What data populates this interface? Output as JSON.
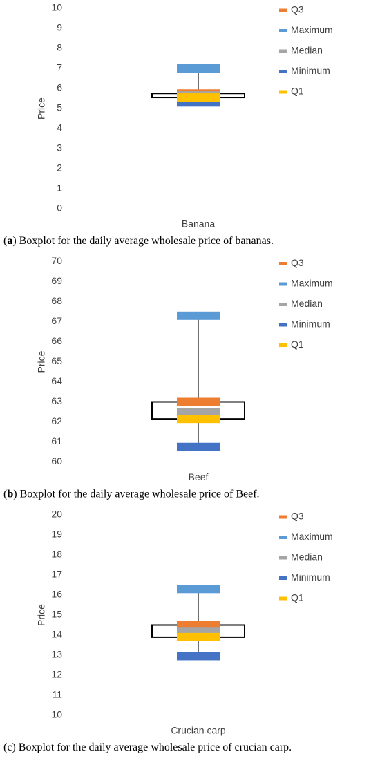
{
  "chart_data": [
    {
      "type": "box",
      "y_label": "Price",
      "categories": [
        "Banana"
      ],
      "ylim": [
        0,
        10
      ],
      "yticks": [
        0,
        1,
        2,
        3,
        4,
        5,
        6,
        7,
        8,
        9,
        10
      ],
      "caption": {
        "open": "(",
        "label": "a",
        "text": ") Boxplot for the daily average wholesale price of bananas."
      },
      "series": [
        {
          "name": "Q3",
          "color": "#ED7D31",
          "values": [
            5.75
          ]
        },
        {
          "name": "Maximum",
          "color": "#5B9BD5",
          "values": [
            7.0
          ]
        },
        {
          "name": "Median",
          "color": "#A5A5A5",
          "values": [
            5.65
          ]
        },
        {
          "name": "Minimum",
          "color": "#4472C4",
          "values": [
            5.3
          ]
        },
        {
          "name": "Q1",
          "color": "#FFC000",
          "values": [
            5.55
          ]
        }
      ]
    },
    {
      "type": "box",
      "y_label": "Price",
      "categories": [
        "Beef"
      ],
      "ylim": [
        60,
        70
      ],
      "yticks": [
        60,
        61,
        62,
        63,
        64,
        65,
        66,
        67,
        68,
        69,
        70
      ],
      "caption": {
        "open": "(",
        "label": "b",
        "text": ") Boxplot for the daily average wholesale price of Beef."
      },
      "series": [
        {
          "name": "Q3",
          "color": "#ED7D31",
          "values": [
            63.0
          ]
        },
        {
          "name": "Maximum",
          "color": "#5B9BD5",
          "values": [
            67.3
          ]
        },
        {
          "name": "Median",
          "color": "#A5A5A5",
          "values": [
            62.5
          ]
        },
        {
          "name": "Minimum",
          "color": "#4472C4",
          "values": [
            60.75
          ]
        },
        {
          "name": "Q1",
          "color": "#FFC000",
          "values": [
            62.15
          ]
        }
      ]
    },
    {
      "type": "box",
      "y_label": "Price",
      "categories": [
        "Crucian carp"
      ],
      "ylim": [
        10,
        20
      ],
      "yticks": [
        10,
        11,
        12,
        13,
        14,
        15,
        16,
        17,
        18,
        19,
        20
      ],
      "caption": {
        "open": "(",
        "label": "c",
        "text": ") Boxplot for the daily average wholesale price of crucian carp."
      },
      "series": [
        {
          "name": "Q3",
          "color": "#ED7D31",
          "values": [
            14.5
          ]
        },
        {
          "name": "Maximum",
          "color": "#5B9BD5",
          "values": [
            16.3
          ]
        },
        {
          "name": "Median",
          "color": "#A5A5A5",
          "values": [
            14.2
          ]
        },
        {
          "name": "Minimum",
          "color": "#4472C4",
          "values": [
            12.95
          ]
        },
        {
          "name": "Q1",
          "color": "#FFC000",
          "values": [
            13.9
          ]
        }
      ]
    }
  ]
}
